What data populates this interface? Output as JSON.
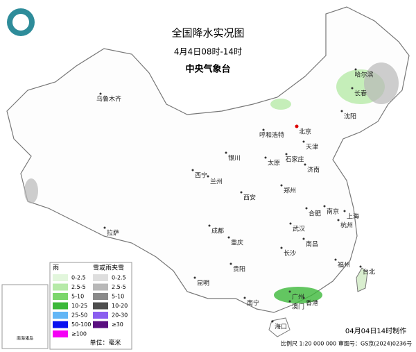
{
  "header": {
    "title": "全国降水实况图",
    "period": "4月4日08时-14时",
    "agency": "中央气象台"
  },
  "cities": [
    "乌鲁木齐",
    "哈尔滨",
    "长春",
    "沈阳",
    "北京",
    "天津",
    "呼和浩特",
    "石家庄",
    "太原",
    "济南",
    "银川",
    "西宁",
    "兰州",
    "郑州",
    "西安",
    "合肥",
    "南京",
    "上海",
    "杭州",
    "武汉",
    "成都",
    "重庆",
    "拉萨",
    "长沙",
    "南昌",
    "福州",
    "台北",
    "贵阳",
    "昆明",
    "南宁",
    "广州",
    "香港",
    "澳门",
    "海口"
  ],
  "legend": {
    "rain": {
      "title": "雨",
      "items": [
        {
          "label": "0-2.5",
          "color": "#e2f6dc"
        },
        {
          "label": "2.5-5",
          "color": "#b6eaa8"
        },
        {
          "label": "5-10",
          "color": "#7cd66c"
        },
        {
          "label": "10-25",
          "color": "#3cb83a"
        },
        {
          "label": "25-50",
          "color": "#62b6f6"
        },
        {
          "label": "50-100",
          "color": "#0a10f0"
        },
        {
          "label": "≥100",
          "color": "#f500f5"
        }
      ]
    },
    "snow": {
      "title": "雪或雨夹雪",
      "items": [
        {
          "label": "0-2.5",
          "color": "#dedede"
        },
        {
          "label": "2.5-5",
          "color": "#b8b8b8"
        },
        {
          "label": "5-10",
          "color": "#8a8a8a"
        },
        {
          "label": "10-20",
          "color": "#4e4e4e"
        },
        {
          "label": "20-30",
          "color": "#8a5ef0"
        },
        {
          "label": "≥30",
          "color": "#5a0f80"
        }
      ]
    },
    "unit": "单位：毫米"
  },
  "inset": {
    "title": "南海诸岛"
  },
  "footer": {
    "made": "04月04日14时制作",
    "scale": "比例尺 1:20 000 000",
    "approval": "审图号：GS京(2024)0236号"
  }
}
